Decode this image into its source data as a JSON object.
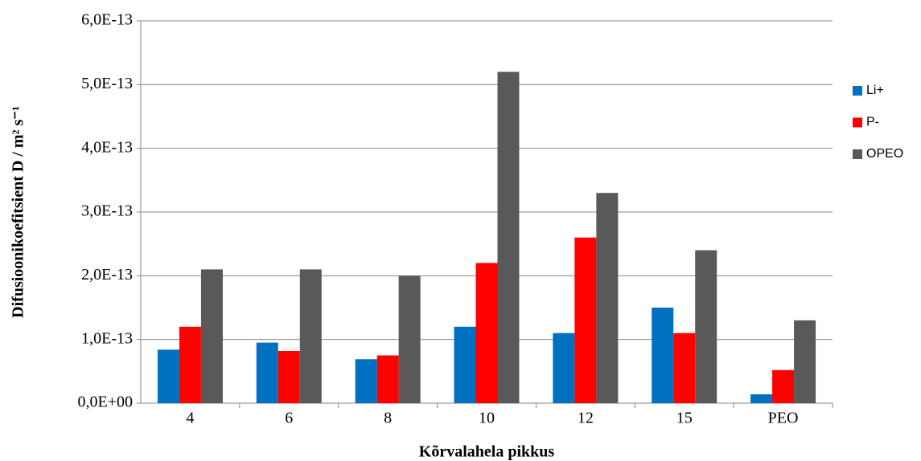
{
  "chart_data": {
    "type": "bar",
    "x_label": "Kõrvalahela pikkus",
    "y_label": "Difusioonikoefitsient  D / m² s⁻¹",
    "categories": [
      "4",
      "6",
      "8",
      "10",
      "12",
      "15",
      "PEO"
    ],
    "series": [
      {
        "name": "Li+",
        "color": "#0070c0",
        "values": [
          8.4e-14,
          9.5e-14,
          6.9e-14,
          1.2e-13,
          1.1e-13,
          1.5e-13,
          1.4e-14
        ]
      },
      {
        "name": "P-",
        "color": "#ff0000",
        "values": [
          1.2e-13,
          8.2e-14,
          7.5e-14,
          2.2e-13,
          2.6e-13,
          1.1e-13,
          5.2e-14
        ]
      },
      {
        "name": "OPEO",
        "color": "#595959",
        "values": [
          2.1e-13,
          2.1e-13,
          2e-13,
          5.2e-13,
          3.3e-13,
          2.4e-13,
          1.3e-13
        ]
      }
    ],
    "ylim": [
      0,
      6e-13
    ],
    "yticks": [
      {
        "value": 0,
        "label": "0,0E+00"
      },
      {
        "value": 1e-13,
        "label": "1,0E-13"
      },
      {
        "value": 2e-13,
        "label": "2,0E-13"
      },
      {
        "value": 3e-13,
        "label": "3,0E-13"
      },
      {
        "value": 4e-13,
        "label": "4,0E-13"
      },
      {
        "value": 5e-13,
        "label": "5,0E-13"
      },
      {
        "value": 6e-13,
        "label": "6,0E-13"
      }
    ],
    "grid": true,
    "legend": "right"
  }
}
